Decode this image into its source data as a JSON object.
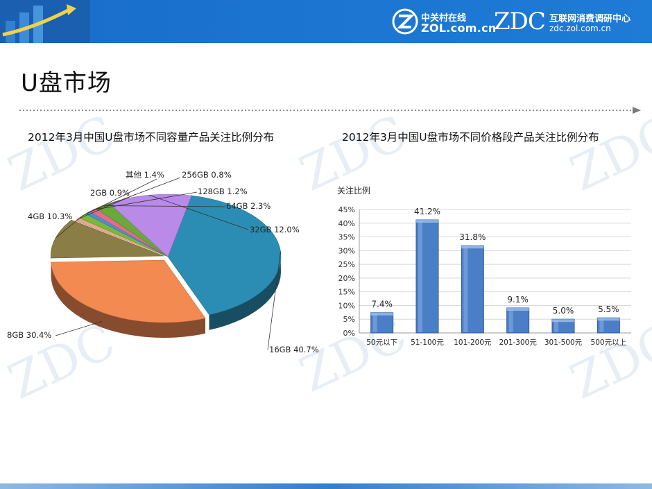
{
  "header": {
    "zol_cn": "中关村在线",
    "zol_url": "ZOL.com.cn",
    "zdc_mark": "ZDC",
    "zdc_cn": "互联网消费调研中心",
    "zdc_url": "zdc.zol.com.cn"
  },
  "page_title": "U盘市场",
  "chart_data": [
    {
      "type": "pie",
      "title": "2012年3月中国U盘市场不同容量产品关注比例分布",
      "slices": [
        {
          "label": "16GB",
          "value": 40.7,
          "pct_label": "40.7%",
          "color": "#2b8db3"
        },
        {
          "label": "8GB",
          "value": 30.4,
          "pct_label": "30.4%",
          "color": "#f38a52"
        },
        {
          "label": "4GB",
          "value": 10.3,
          "pct_label": "10.3%",
          "color": "#8a7d45"
        },
        {
          "label": "2GB",
          "value": 0.9,
          "pct_label": "0.9%",
          "color": "#e7a88a"
        },
        {
          "label": "其他",
          "value": 1.4,
          "pct_label": "1.4%",
          "color": "#7ab83a"
        },
        {
          "label": "256GB",
          "value": 0.8,
          "pct_label": "0.8%",
          "color": "#4a8fd4"
        },
        {
          "label": "128GB",
          "value": 1.2,
          "pct_label": "1.2%",
          "color": "#e06d8a"
        },
        {
          "label": "64GB",
          "value": 2.3,
          "pct_label": "2.3%",
          "color": "#6aa83a"
        },
        {
          "label": "32GB",
          "value": 12.0,
          "pct_label": "12.0%",
          "color": "#b98ae8"
        }
      ]
    },
    {
      "type": "bar",
      "title": "2012年3月中国U盘市场不同价格段产品关注比例分布",
      "ylabel": "关注比例",
      "ylim": [
        0,
        45
      ],
      "yticks": [
        "0%",
        "5%",
        "10%",
        "15%",
        "20%",
        "25%",
        "30%",
        "35%",
        "40%",
        "45%"
      ],
      "categories": [
        "50元以下",
        "51-100元",
        "101-200元",
        "201-300元",
        "301-500元",
        "500元以上"
      ],
      "values": [
        7.4,
        41.2,
        31.8,
        9.1,
        5.0,
        5.5
      ],
      "value_labels": [
        "7.4%",
        "41.2%",
        "31.8%",
        "9.1%",
        "5.0%",
        "5.5%"
      ],
      "color": "#4a7fc7",
      "grid": true
    }
  ]
}
